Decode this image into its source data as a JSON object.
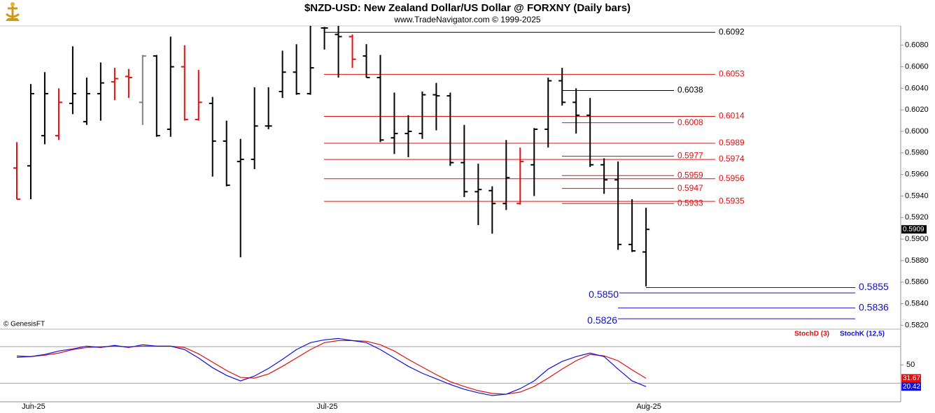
{
  "chart_data": [
    {
      "type": "ohlc",
      "title": "$NZD-USD:  New Zealand Dollar/US Dollar @ FORXNY  (Daily bars)",
      "subtitle": "www.TradeNavigator.com © 1999-2025",
      "source": "© GenesisFT",
      "categories": [
        null,
        "Jun-25",
        null,
        null,
        null,
        null,
        null,
        null,
        null,
        null,
        null,
        null,
        null,
        null,
        null,
        null,
        null,
        null,
        null,
        null,
        null,
        null,
        "Jul-25",
        null,
        null,
        null,
        null,
        null,
        null,
        null,
        null,
        null,
        null,
        null,
        null,
        null,
        null,
        null,
        null,
        null,
        null,
        null,
        null,
        null,
        null,
        "Aug-25"
      ],
      "open": [
        0.5966,
        0.5968,
        0.5996,
        0.5996,
        0.6026,
        0.6009,
        0.6035,
        0.6046,
        0.6051,
        0.6027,
        0.607,
        0.6002,
        0.606,
        0.6011,
        0.6026,
        0.5991,
        0.5972,
        0.5974,
        0.6005,
        0.6037,
        0.6055,
        0.6035,
        0.6096,
        0.609,
        0.6088,
        0.607,
        0.605,
        0.5994,
        0.5998,
        0.5998,
        0.6034,
        0.6033,
        0.5971,
        0.5944,
        0.5945,
        0.5933,
        0.5933,
        0.5969,
        0.6002,
        0.6047,
        0.6027,
        0.6015,
        0.5969,
        0.5955,
        0.5895,
        0.5888
      ],
      "high": [
        0.599,
        0.6044,
        0.6055,
        0.604,
        0.6079,
        0.605,
        0.6064,
        0.6059,
        0.6058,
        0.6071,
        0.6071,
        0.6088,
        0.608,
        0.6057,
        0.6032,
        0.601,
        0.5993,
        0.6041,
        0.6041,
        0.6075,
        0.6081,
        0.6098,
        0.6097,
        0.6098,
        0.609,
        0.6081,
        0.6071,
        0.6036,
        0.6015,
        0.6037,
        0.6045,
        0.6036,
        0.6006,
        0.597,
        0.5949,
        0.5992,
        0.5985,
        0.6003,
        0.605,
        0.6059,
        0.604,
        0.6031,
        0.5975,
        0.5972,
        0.5937,
        0.5929
      ],
      "low": [
        0.5937,
        0.5937,
        0.5988,
        0.5992,
        0.6016,
        0.6006,
        0.601,
        0.6029,
        0.6031,
        0.6006,
        0.5995,
        0.5995,
        0.601,
        0.601,
        0.5958,
        0.5949,
        0.5883,
        0.5965,
        0.6002,
        0.6031,
        0.6034,
        0.6034,
        0.6076,
        0.605,
        0.6059,
        0.605,
        0.599,
        0.5979,
        0.5976,
        0.5993,
        0.6001,
        0.5968,
        0.5939,
        0.5913,
        0.5905,
        0.5927,
        0.5932,
        0.594,
        0.5985,
        0.6024,
        0.5998,
        0.5967,
        0.5942,
        0.589,
        0.5888,
        0.5856
      ],
      "close": [
        0.5937,
        0.6035,
        0.6035,
        0.6027,
        0.6035,
        0.6035,
        0.6045,
        0.6049,
        0.605,
        0.607,
        0.5996,
        0.606,
        0.6011,
        0.6027,
        0.5991,
        0.595,
        0.5974,
        0.6005,
        0.6005,
        0.6055,
        0.6035,
        0.6059,
        0.6096,
        0.6088,
        0.6067,
        0.605,
        0.5992,
        0.5998,
        0.6,
        0.6034,
        0.6033,
        0.5971,
        0.5944,
        0.5946,
        0.5933,
        0.5957,
        0.5972,
        0.6002,
        0.6047,
        0.6027,
        0.6015,
        0.5969,
        0.5955,
        0.5895,
        0.5889,
        0.5909
      ],
      "colors": [
        "#e01010",
        "#000000",
        "#000000",
        "#e01010",
        "#000000",
        "#000000",
        "#000000",
        "#e01010",
        "#e01010",
        "#808080",
        "#000000",
        "#000000",
        "#e01010",
        "#e01010",
        "#000000",
        "#000000",
        "#000000",
        "#000000",
        "#000000",
        "#000000",
        "#000000",
        "#000000",
        "#000000",
        "#000000",
        "#e01010",
        "#000000",
        "#000000",
        "#000000",
        "#000000",
        "#000000",
        "#000000",
        "#000000",
        "#000000",
        "#000000",
        "#000000",
        "#000000",
        "#e01010",
        "#000000",
        "#000000",
        "#000000",
        "#000000",
        "#000000",
        "#000000",
        "#000000",
        "#000000",
        "#000000"
      ],
      "ylim": [
        0.5817,
        0.6098
      ],
      "yticks": [
        {
          "value": 0.582,
          "label": "0.5820"
        },
        {
          "value": 0.584,
          "label": "0.5840"
        },
        {
          "value": 0.586,
          "label": "0.5860"
        },
        {
          "value": 0.588,
          "label": "0.5880"
        },
        {
          "value": 0.59,
          "label": "0.5900"
        },
        {
          "value": 0.592,
          "label": "0.5920"
        },
        {
          "value": 0.594,
          "label": "0.5940"
        },
        {
          "value": 0.596,
          "label": "0.5960"
        },
        {
          "value": 0.598,
          "label": "0.5980"
        },
        {
          "value": 0.6,
          "label": "0.6000"
        },
        {
          "value": 0.602,
          "label": "0.6020"
        },
        {
          "value": 0.604,
          "label": "0.6040"
        },
        {
          "value": 0.606,
          "label": "0.6060"
        },
        {
          "value": 0.608,
          "label": "0.6080"
        }
      ],
      "last_value": 0.5909,
      "levels": [
        {
          "value": 0.6092,
          "color": "#000000"
        },
        {
          "value": 0.6053,
          "color": "#e01010"
        },
        {
          "value": 0.6038,
          "color": "#000000"
        },
        {
          "value": 0.6014,
          "color": "#e01010"
        },
        {
          "value": 0.6008,
          "color": "#e01010"
        },
        {
          "value": 0.5989,
          "color": "#e01010"
        },
        {
          "value": 0.5977,
          "color": "#e01010"
        },
        {
          "value": 0.5974,
          "color": "#e01010"
        },
        {
          "value": 0.5959,
          "color": "#e01010"
        },
        {
          "value": 0.5956,
          "color": "#e01010"
        },
        {
          "value": 0.5947,
          "color": "#e01010"
        },
        {
          "value": 0.5935,
          "color": "#e01010"
        },
        {
          "value": 0.5933,
          "color": "#e01010"
        },
        {
          "value": 0.5855,
          "color": "#1010c0"
        },
        {
          "value": 0.585,
          "label": "0.5850",
          "color": "#1010c0"
        },
        {
          "value": 0.5836,
          "color": "#1010c0"
        },
        {
          "value": 0.5826,
          "color": "#1010c0"
        }
      ]
    },
    {
      "type": "line",
      "ylim": [
        0,
        98
      ],
      "yticks": [
        50
      ],
      "hlines": [
        75,
        25
      ],
      "series": [
        {
          "name": "StochD (3)",
          "color": "#e01010",
          "values": [
            62.4,
            61.4,
            63.3,
            66.2,
            71.0,
            73.8,
            74.8,
            75.7,
            74.8,
            75.7,
            75.7,
            75.7,
            73.8,
            65.2,
            53.8,
            42.4,
            32.9,
            31.9,
            37.6,
            48.1,
            59.5,
            71.0,
            80.5,
            83.3,
            83.3,
            82.4,
            77.6,
            69.0,
            57.6,
            47.1,
            36.7,
            27.1,
            20.5,
            14.8,
            11.0,
            10.0,
            12.9,
            20.5,
            31.9,
            44.3,
            55.7,
            64.3,
            62.4,
            55.7,
            43.3,
            31.67
          ]
        },
        {
          "name": "StochK (12,5)",
          "color": "#1010e0",
          "values": [
            60.5,
            61.4,
            64.3,
            69.0,
            71.9,
            75.7,
            73.8,
            76.7,
            73.8,
            77.6,
            75.7,
            75.7,
            71.0,
            59.5,
            46.2,
            35.7,
            28.1,
            34.8,
            45.2,
            57.6,
            71.0,
            80.5,
            84.3,
            86.2,
            83.3,
            80.5,
            71.0,
            59.5,
            48.1,
            38.6,
            31.0,
            23.3,
            16.7,
            11.9,
            8.1,
            10.0,
            17.6,
            28.1,
            44.3,
            54.8,
            61.4,
            66.2,
            61.4,
            44.3,
            28.1,
            20.42
          ]
        }
      ]
    }
  ]
}
